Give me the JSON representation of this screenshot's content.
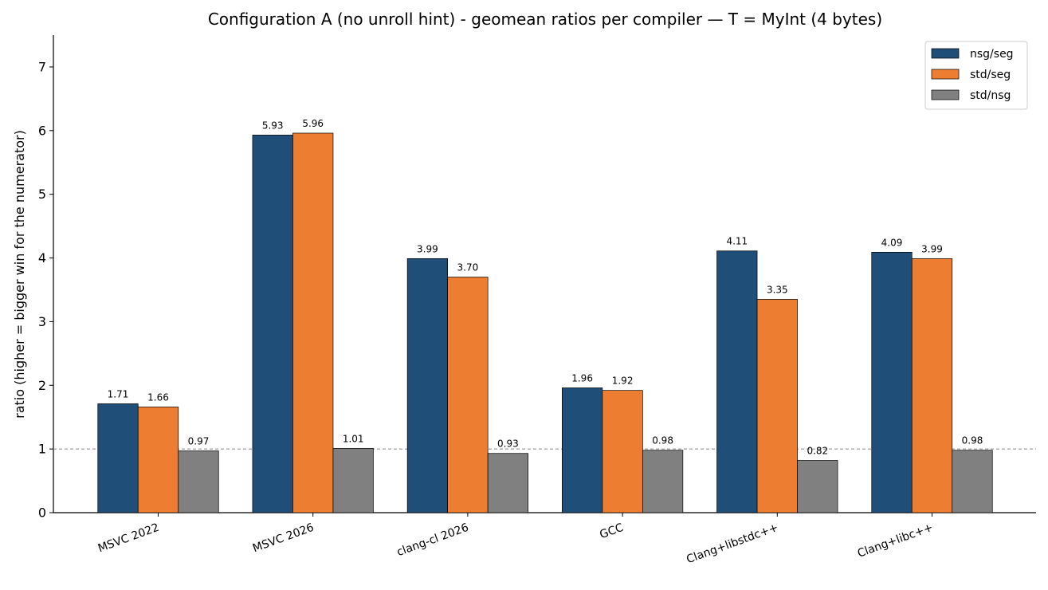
{
  "chart_data": {
    "type": "bar",
    "title": "Configuration A (no unroll hint) - geomean ratios per compiler  —  T = MyInt (4 bytes)",
    "xlabel": "",
    "ylabel": "ratio  (higher = bigger win for the numerator)",
    "ylim": [
      0,
      7.5
    ],
    "yticks": [
      0,
      1,
      2,
      3,
      4,
      5,
      6,
      7
    ],
    "ytick_labels": [
      "0",
      "1",
      "2",
      "3",
      "4",
      "5",
      "6",
      "7"
    ],
    "reference_line": 1,
    "grid": false,
    "legend_position": "top-right",
    "categories": [
      "MSVC 2022",
      "MSVC 2026",
      "clang-cl 2026",
      "GCC",
      "Clang+libstdc++",
      "Clang+libc++"
    ],
    "series": [
      {
        "name": "nsg/seg",
        "color": "#1f4e79",
        "values": [
          1.71,
          5.93,
          3.99,
          1.96,
          4.11,
          4.09
        ],
        "labels": [
          "1.71",
          "5.93",
          "3.99",
          "1.96",
          "4.11",
          "4.09"
        ]
      },
      {
        "name": "std/seg",
        "color": "#ed7d31",
        "values": [
          1.66,
          5.96,
          3.7,
          1.92,
          3.35,
          3.99
        ],
        "labels": [
          "1.66",
          "5.96",
          "3.70",
          "1.92",
          "3.35",
          "3.99"
        ]
      },
      {
        "name": "std/nsg",
        "color": "#808080",
        "values": [
          0.97,
          1.01,
          0.93,
          0.98,
          0.82,
          0.98
        ],
        "labels": [
          "0.97",
          "1.01",
          "0.93",
          "0.98",
          "0.82",
          "0.98"
        ]
      }
    ]
  }
}
